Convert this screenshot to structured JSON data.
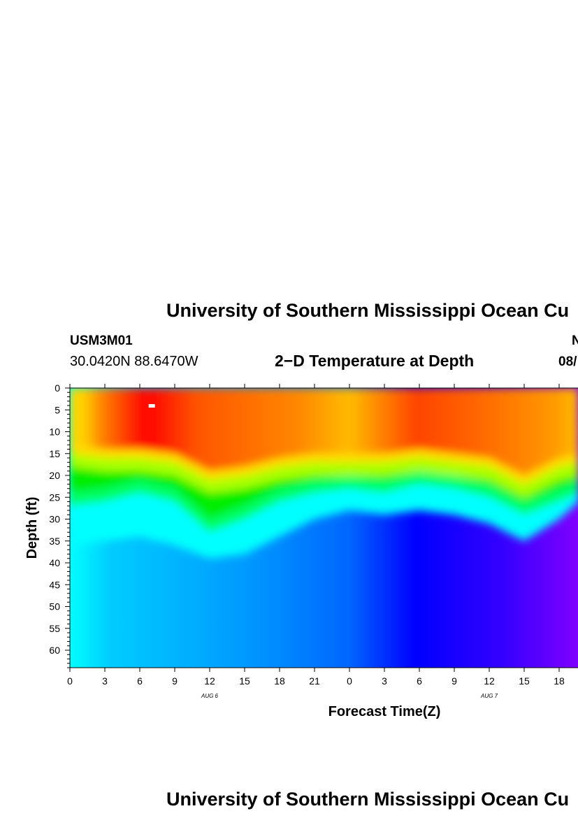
{
  "page": {
    "title": "University of Southern Mississippi Ocean Cu",
    "title_bottom": "University of Southern Mississippi Ocean Cu",
    "station_id": "USM3M01",
    "coordinates": "30.0420N 88.6470W",
    "subtitle": "2−D Temperature at Depth",
    "right_fragment_top": "N",
    "right_fragment_date": "08/"
  },
  "chart_data": {
    "type": "heatmap",
    "title": "2−D Temperature at Depth",
    "xlabel": "Forecast Time(Z)",
    "ylabel": "Depth (ft)",
    "x_tick_labels": [
      "0",
      "3",
      "6",
      "9",
      "12",
      "15",
      "18",
      "21",
      "0",
      "3",
      "6",
      "9",
      "12",
      "15",
      "18"
    ],
    "x_date_labels": [
      "AUG 6",
      "AUG 7"
    ],
    "y_tick_labels": [
      "0",
      "5",
      "10",
      "15",
      "20",
      "25",
      "30",
      "35",
      "40",
      "45",
      "50",
      "55",
      "60"
    ],
    "xlim": [
      0,
      43.7
    ],
    "ylim": [
      0,
      64
    ],
    "colors": {
      "warm_max": "#ff0000",
      "warm": "#ff6600",
      "yellow": "#ffdd00",
      "green": "#00ee00",
      "cyan": "#00ffff",
      "sky": "#0099ff",
      "blue": "#0000ff",
      "violet": "#8000ff"
    },
    "hot_spot": {
      "time_hours": 7,
      "depth_ft": 4
    },
    "thermocline_top_ft": [
      [
        0,
        15
      ],
      [
        3,
        16
      ],
      [
        6,
        16
      ],
      [
        9,
        17
      ],
      [
        12,
        21
      ],
      [
        15,
        20
      ],
      [
        18,
        18
      ],
      [
        21,
        17
      ],
      [
        24,
        17
      ],
      [
        27,
        17
      ],
      [
        30,
        16
      ],
      [
        33,
        17
      ],
      [
        36,
        18
      ],
      [
        39,
        22
      ],
      [
        42,
        18
      ],
      [
        43.7,
        17
      ]
    ],
    "thermocline_green_ft": [
      [
        0,
        25
      ],
      [
        3,
        24
      ],
      [
        6,
        22
      ],
      [
        9,
        24
      ],
      [
        12,
        31
      ],
      [
        15,
        28
      ],
      [
        18,
        24
      ],
      [
        21,
        22
      ],
      [
        24,
        21
      ],
      [
        27,
        22
      ],
      [
        30,
        20
      ],
      [
        33,
        21
      ],
      [
        36,
        23
      ],
      [
        39,
        27
      ],
      [
        42,
        24
      ],
      [
        43.7,
        22
      ]
    ],
    "cyan_layer_ft": [
      [
        0,
        36
      ],
      [
        3,
        35
      ],
      [
        6,
        34
      ],
      [
        9,
        36
      ],
      [
        12,
        39
      ],
      [
        15,
        38
      ],
      [
        18,
        34
      ],
      [
        21,
        30
      ],
      [
        24,
        28
      ],
      [
        27,
        29
      ],
      [
        30,
        28
      ],
      [
        33,
        29
      ],
      [
        36,
        31
      ],
      [
        39,
        35
      ],
      [
        42,
        30
      ],
      [
        43.7,
        26
      ]
    ]
  }
}
